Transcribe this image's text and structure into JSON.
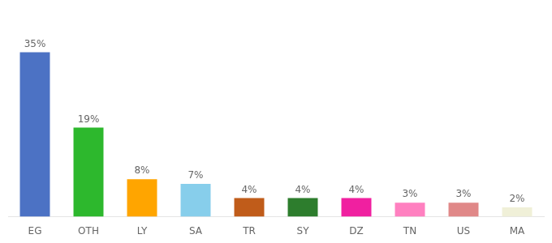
{
  "chart_data": {
    "type": "bar",
    "categories": [
      "EG",
      "OTH",
      "LY",
      "SA",
      "TR",
      "SY",
      "DZ",
      "TN",
      "US",
      "MA"
    ],
    "values": [
      35,
      19,
      8,
      7,
      4,
      4,
      4,
      3,
      3,
      2
    ],
    "value_labels": [
      "35%",
      "19%",
      "8%",
      "7%",
      "4%",
      "4%",
      "4%",
      "3%",
      "3%",
      "2%"
    ],
    "colors": [
      "#4c72c4",
      "#2db82d",
      "#ffa500",
      "#87ceeb",
      "#c05c1a",
      "#2d7d2d",
      "#f020a0",
      "#ff80c0",
      "#e08888",
      "#f0f0d8"
    ],
    "ylim": [
      0,
      42
    ],
    "grid": false,
    "tick_labels": "x",
    "data_labels": true
  }
}
